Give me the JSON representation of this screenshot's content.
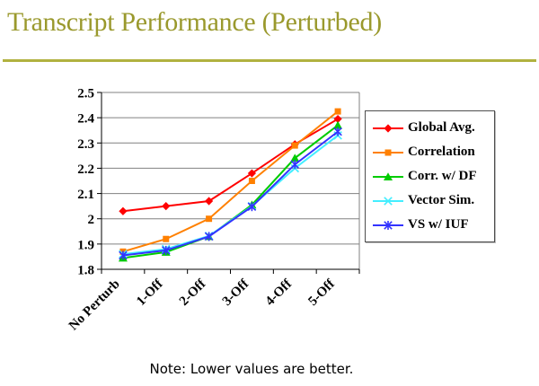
{
  "title": "Transcript Performance (Perturbed)",
  "note": "Note: Lower values are better.",
  "colors": {
    "title_text": "#9a992d",
    "title_rule": "#b1b23f",
    "axis": "#000000",
    "gridline": "#808080",
    "legend_border": "#4d4d4d",
    "background": "#ffffff"
  },
  "chart_data": {
    "type": "line",
    "title": "",
    "xlabel": "",
    "ylabel": "",
    "categories": [
      "No Perturb",
      "1-Off",
      "2-Off",
      "3-Off",
      "4-Off",
      "5-Off"
    ],
    "series": [
      {
        "name": "Global Avg.",
        "color": "#ff0000",
        "marker": "diamond",
        "values": [
          2.03,
          2.05,
          2.07,
          2.18,
          2.295,
          2.395
        ]
      },
      {
        "name": "Correlation",
        "color": "#ff8000",
        "marker": "square",
        "values": [
          1.87,
          1.92,
          2.0,
          2.15,
          2.29,
          2.425
        ]
      },
      {
        "name": "Corr. w/ DF",
        "color": "#00cc00",
        "marker": "triangle",
        "values": [
          1.845,
          1.868,
          1.93,
          2.055,
          2.24,
          2.37
        ]
      },
      {
        "name": "Vector Sim.",
        "color": "#44eeff",
        "marker": "x",
        "values": [
          1.86,
          1.88,
          1.932,
          2.05,
          2.2,
          2.33
        ]
      },
      {
        "name": "VS w/ IUF",
        "color": "#3333ff",
        "marker": "asterisk",
        "values": [
          1.855,
          1.875,
          1.93,
          2.048,
          2.215,
          2.345
        ]
      }
    ],
    "ylim": [
      1.8,
      2.5
    ],
    "ytick_labels": [
      "2.5",
      "2.4",
      "2.3",
      "2.2",
      "2.1",
      "2",
      "1.9",
      "1.8"
    ],
    "ytick_values": [
      2.5,
      2.4,
      2.3,
      2.2,
      2.1,
      2.0,
      1.9,
      1.8
    ],
    "grid": true,
    "legend_position": "right",
    "x_label_rotation_deg": -45
  }
}
